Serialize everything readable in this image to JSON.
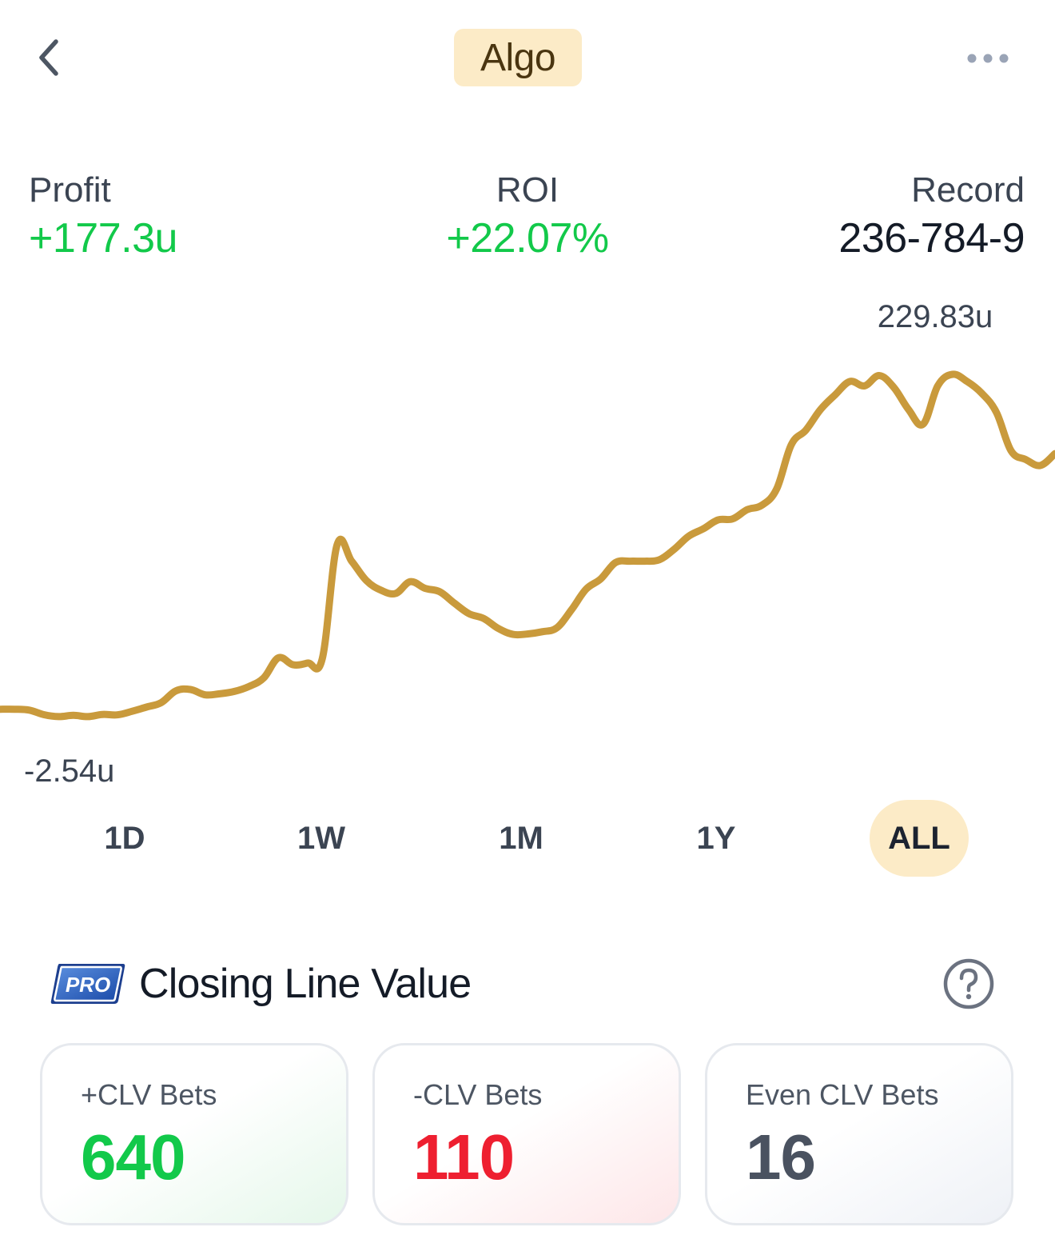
{
  "header": {
    "title": "Algo",
    "back_icon": "chevron-left-icon",
    "more_icon": "more-horizontal-icon"
  },
  "stats": {
    "profit": {
      "label": "Profit",
      "value": "+177.3u"
    },
    "roi": {
      "label": "ROI",
      "value": "+22.07%"
    },
    "record": {
      "label": "Record",
      "value": "236-784-9"
    }
  },
  "chart": {
    "max_label": "229.83u",
    "min_label": "-2.54u",
    "line_color": "#c99a3c"
  },
  "chart_data": {
    "type": "line",
    "y_unit": "u",
    "max": 229.83,
    "min": -2.54,
    "series": [
      {
        "values": [
          2.5,
          2.5,
          1.9,
          -1.2,
          -2.5,
          -1.6,
          -2.5,
          -1.0,
          -1.3,
          1.1,
          4.0,
          7.0,
          15.0,
          15.9,
          12.3,
          13.0,
          14.6,
          18.0,
          23.8,
          37.4,
          32.7,
          33.9,
          37.0,
          114.0,
          103.0,
          89.9,
          83.3,
          81.1,
          89.1,
          84.6,
          82.3,
          74.6,
          67.4,
          64.2,
          57.4,
          53.3,
          53.6,
          55.1,
          57.8,
          70.0,
          84.0,
          91.0,
          102.0,
          103.0,
          103.0,
          104.0,
          111.0,
          120.0,
          125.0,
          131.0,
          131.7,
          138.0,
          141.0,
          152.0,
          182.0,
          192.0,
          206.0,
          216.0,
          225.0,
          222.0,
          229.0,
          221.0,
          206.0,
          196.0,
          222.0,
          229.83,
          225.0,
          217.0,
          204.0,
          178.0,
          172.0,
          168.0,
          176.0
        ]
      }
    ]
  },
  "ranges": {
    "d1": "1D",
    "w1": "1W",
    "m1": "1M",
    "y1": "1Y",
    "all": "ALL",
    "selected": "ALL",
    "selected_color": "#fcebc7"
  },
  "clv": {
    "badge": "PRO",
    "title": "Closing Line Value",
    "help_icon": "help-circle-icon",
    "positive": {
      "label": "+CLV Bets",
      "value": "640",
      "color": "#12c94a"
    },
    "negative": {
      "label": "-CLV Bets",
      "value": "110",
      "color": "#ee1f30"
    },
    "even": {
      "label": "Even CLV Bets",
      "value": "16",
      "color": "#4a5260"
    }
  }
}
